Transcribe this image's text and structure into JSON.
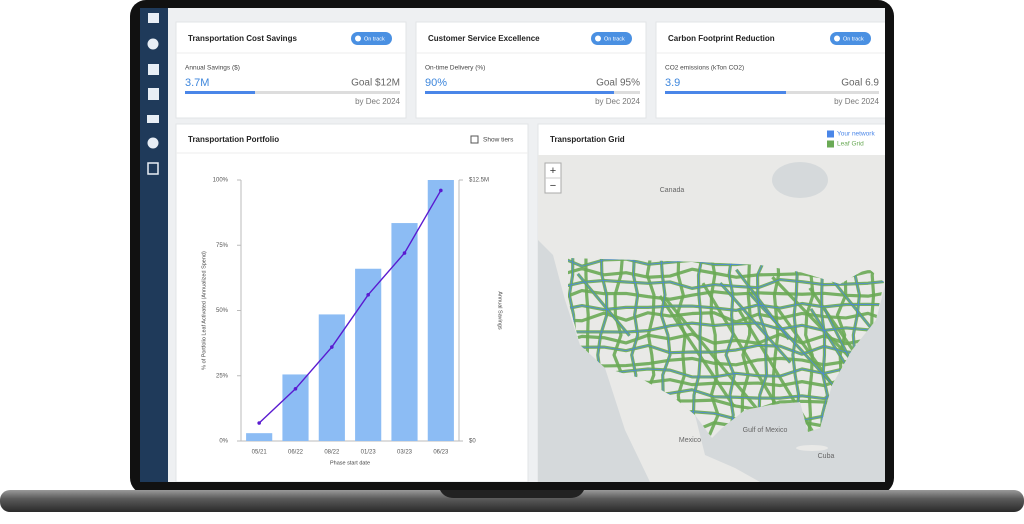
{
  "kpis": [
    {
      "title": "Transportation Cost Savings",
      "status": "On track",
      "metric": "Annual Savings ($)",
      "value": "3.7M",
      "goal": "Goal $12M",
      "deadline": "by Dec 2024"
    },
    {
      "title": "Customer Service Excellence",
      "status": "On track",
      "metric": "On-time Delivery (%)",
      "value": "90%",
      "goal": "Goal 95%",
      "deadline": "by Dec 2024"
    },
    {
      "title": "Carbon Footprint Reduction",
      "status": "On track",
      "metric": "CO2 emissions (kTon CO2)",
      "value": "3.9",
      "goal": "Goal 6.9",
      "deadline": "by Dec 2024"
    }
  ],
  "portfolio": {
    "show_tiers": "Show tiers"
  },
  "chart_data": {
    "type": "bar",
    "title": "Transportation Portfolio",
    "x_label": "Phase start date",
    "y_label": "% of Portfolio Leaf Activated (Annualized Spend)",
    "y2_label": "Annual Savings",
    "categories": [
      "05/21",
      "06/22",
      "08/22",
      "01/23",
      "03/23",
      "06/23"
    ],
    "series": [
      {
        "type": "bar",
        "color": "#8cbcf4",
        "values": [
          3,
          25.5,
          48.5,
          66,
          83.5,
          100
        ]
      },
      {
        "type": "line",
        "color": "#5a1bd0",
        "axis": "y2",
        "values": [
          862500,
          2500000,
          4500000,
          7000000,
          9000000,
          12000000
        ]
      }
    ],
    "ylim": [
      0,
      100
    ],
    "yticks": [
      {
        "value": 0,
        "label": "0%"
      },
      {
        "value": 25,
        "label": "25%"
      },
      {
        "value": 50,
        "label": "50%"
      },
      {
        "value": 75,
        "label": "75%"
      },
      {
        "value": 100,
        "label": "100%"
      }
    ],
    "y2lim": [
      0,
      12500000
    ],
    "y2ticks": [
      {
        "value": 0,
        "label": "$0"
      },
      {
        "value": 12500000,
        "label": "$12.5M"
      }
    ],
    "grid": false
  },
  "map": {
    "title": "Transportation Grid",
    "legend": [
      {
        "name": "Your network",
        "color": "#4a86e8"
      },
      {
        "name": "Leaf Grid",
        "color": "#6aaa55"
      }
    ],
    "labels": [
      "Canada",
      "Mexico",
      "Gulf of Mexico",
      "Cuba"
    ],
    "zoom_in": "+",
    "zoom_out": "−"
  }
}
